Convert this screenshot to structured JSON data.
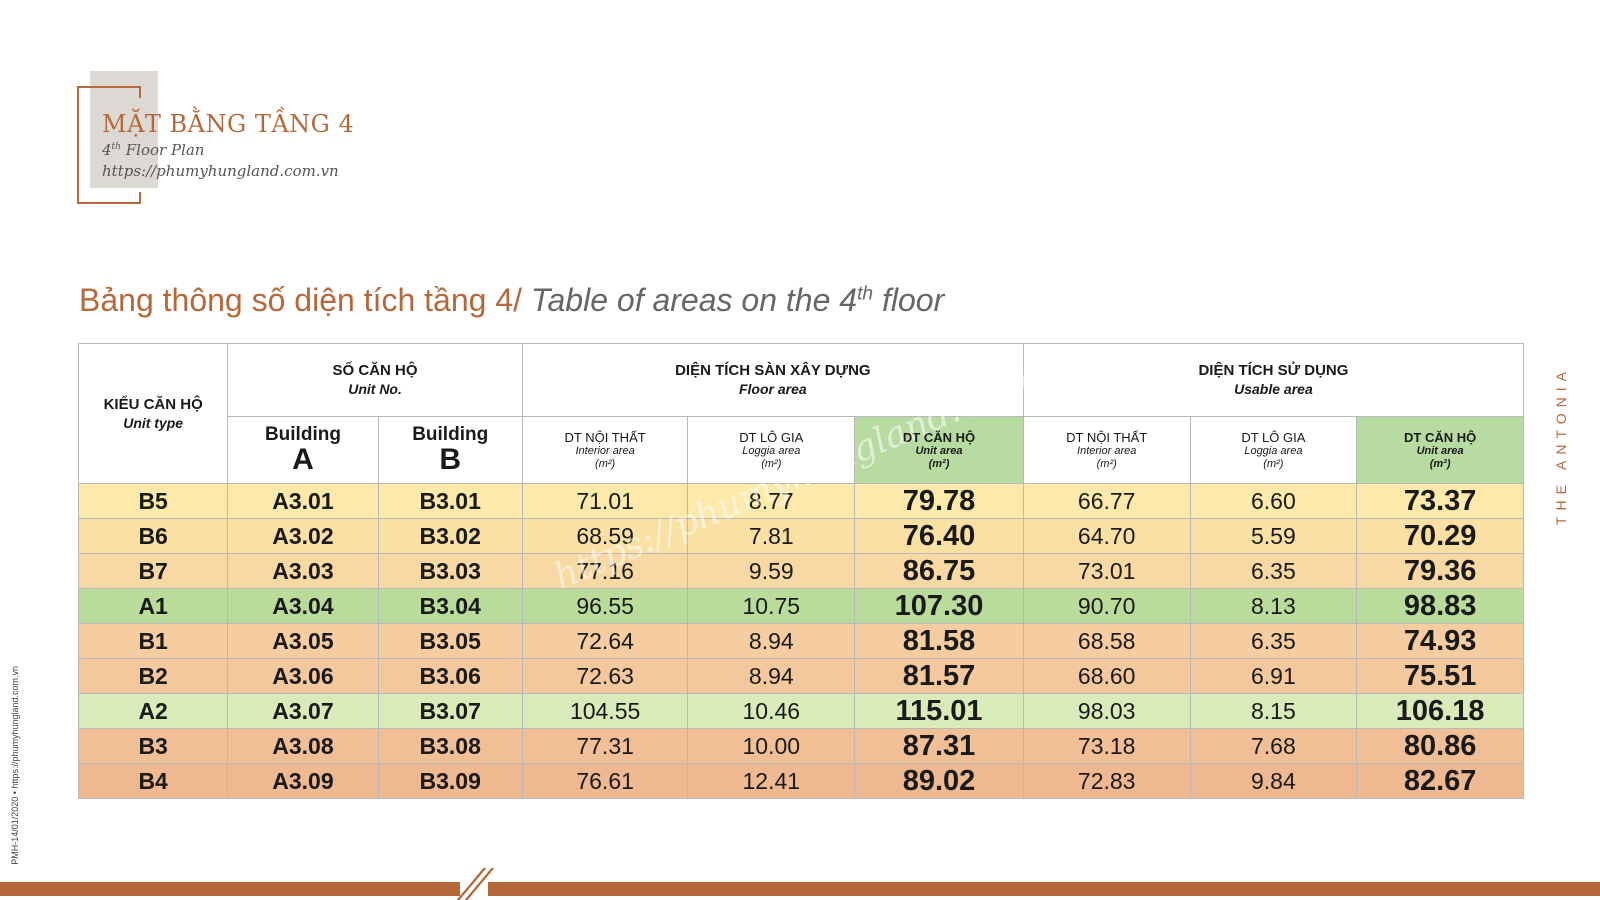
{
  "header": {
    "title": "MẶT BẰNG TẦNG 4",
    "subtitle_pre": "4",
    "subtitle_sup": "th",
    "subtitle_post": " Floor Plan",
    "url": "https://phumyhungland.com.vn"
  },
  "table_title": {
    "vn": "Bảng thông số diện tích tầng 4/ ",
    "en_pre": "Table of areas on the 4",
    "en_sup": "th",
    "en_post": " floor"
  },
  "brand": "THE ANTONIA",
  "side_note": "PMH-14/01/2020 • https://phumyhungland.com.vn",
  "watermark": "https://phumyhungland.com.vn",
  "table": {
    "headers": {
      "unit_type": {
        "vn": "KIỂU CĂN HỘ",
        "en": "Unit type"
      },
      "unit_no": {
        "vn": "SỐ CĂN HỘ",
        "en": "Unit No."
      },
      "floor_area": {
        "vn": "DIỆN TÍCH SÀN XÂY DỰNG",
        "en": "Floor area"
      },
      "usable_area": {
        "vn": "DIỆN TÍCH SỬ DỤNG",
        "en": "Usable area"
      },
      "building_a": {
        "label": "Building",
        "letter": "A"
      },
      "building_b": {
        "label": "Building",
        "letter": "B"
      },
      "interior": {
        "vn": "DT NỘI THẤT",
        "en": "Interior area",
        "unit": "(m²)"
      },
      "loggia": {
        "vn": "DT LÔ GIA",
        "en": "Loggia area",
        "unit": "(m²)"
      },
      "unit_area": {
        "vn": "DT CĂN HỘ",
        "en": "Unit area",
        "unit": "(m²)"
      }
    },
    "rows": [
      {
        "type": "B5",
        "a": "A3.01",
        "b": "B3.01",
        "f_int": "71.01",
        "f_log": "8.77",
        "f_unit": "79.78",
        "u_int": "66.77",
        "u_log": "6.60",
        "u_unit": "73.37",
        "color": "#fde9a9"
      },
      {
        "type": "B6",
        "a": "A3.02",
        "b": "B3.02",
        "f_int": "68.59",
        "f_log": "7.81",
        "f_unit": "76.40",
        "u_int": "64.70",
        "u_log": "5.59",
        "u_unit": "70.29",
        "color": "#fbe0a4"
      },
      {
        "type": "B7",
        "a": "A3.03",
        "b": "B3.03",
        "f_int": "77.16",
        "f_log": "9.59",
        "f_unit": "86.75",
        "u_int": "73.01",
        "u_log": "6.35",
        "u_unit": "79.36",
        "color": "#f8d9a4"
      },
      {
        "type": "A1",
        "a": "A3.04",
        "b": "B3.04",
        "f_int": "96.55",
        "f_log": "10.75",
        "f_unit": "107.30",
        "u_int": "90.70",
        "u_log": "8.13",
        "u_unit": "98.83",
        "color": "#b9dc9a"
      },
      {
        "type": "B1",
        "a": "A3.05",
        "b": "B3.05",
        "f_int": "72.64",
        "f_log": "8.94",
        "f_unit": "81.58",
        "u_int": "68.58",
        "u_log": "6.35",
        "u_unit": "74.93",
        "color": "#f5cda0"
      },
      {
        "type": "B2",
        "a": "A3.06",
        "b": "B3.06",
        "f_int": "72.63",
        "f_log": "8.94",
        "f_unit": "81.57",
        "u_int": "68.60",
        "u_log": "6.91",
        "u_unit": "75.51",
        "color": "#f3c89d"
      },
      {
        "type": "A2",
        "a": "A3.07",
        "b": "B3.07",
        "f_int": "104.55",
        "f_log": "10.46",
        "f_unit": "115.01",
        "u_int": "98.03",
        "u_log": "8.15",
        "u_unit": "106.18",
        "color": "#d8ebb9"
      },
      {
        "type": "B3",
        "a": "A3.08",
        "b": "B3.08",
        "f_int": "77.31",
        "f_log": "10.00",
        "f_unit": "87.31",
        "u_int": "73.18",
        "u_log": "7.68",
        "u_unit": "80.86",
        "color": "#f0bf96"
      },
      {
        "type": "B4",
        "a": "A3.09",
        "b": "B3.09",
        "f_int": "76.61",
        "f_log": "12.41",
        "f_unit": "89.02",
        "u_int": "72.83",
        "u_log": "9.84",
        "u_unit": "82.67",
        "color": "#eeb891"
      }
    ]
  }
}
